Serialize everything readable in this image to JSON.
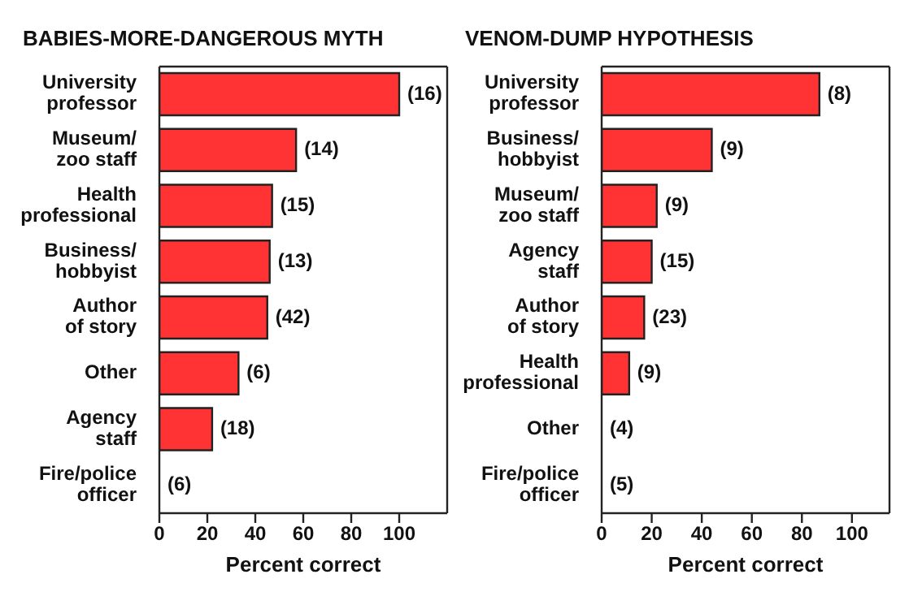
{
  "chart_data": [
    {
      "type": "bar",
      "orientation": "horizontal",
      "title": "BABIES-MORE-DANGEROUS MYTH",
      "xlabel": "Percent correct",
      "categories": [
        "University\nprofessor",
        "Museum/\nzoo staff",
        "Health\nprofessional",
        "Business/\nhobbyist",
        "Author\nof story",
        "Other",
        "Agency\nstaff",
        "Fire/police\nofficer"
      ],
      "values": [
        100,
        57,
        47,
        46,
        45,
        33,
        22,
        0
      ],
      "color": "#ff3333",
      "xlim": [
        0,
        120
      ],
      "xticks": [
        0,
        20,
        40,
        60,
        80,
        100
      ],
      "annotations": [
        {
          "text": "(16)",
          "x": 100,
          "y": "University\nprofessor"
        },
        {
          "text": "(14)",
          "x": 57,
          "y": "Museum/\nzoo staff"
        },
        {
          "text": "(15)",
          "x": 47,
          "y": "Health\nprofessional"
        },
        {
          "text": "(13)",
          "x": 46,
          "y": "Business/\nhobbyist"
        },
        {
          "text": "(42)",
          "x": 45,
          "y": "Author\nof story"
        },
        {
          "text": "(6)",
          "x": 33,
          "y": "Other"
        },
        {
          "text": "(18)",
          "x": 22,
          "y": "Agency\nstaff"
        },
        {
          "text": "(6)",
          "x": 0,
          "y": "Fire/police\nofficer"
        }
      ]
    },
    {
      "type": "bar",
      "orientation": "horizontal",
      "title": "VENOM-DUMP HYPOTHESIS",
      "xlabel": "Percent correct",
      "categories": [
        "University\nprofessor",
        "Business/\nhobbyist",
        "Museum/\nzoo staff",
        "Agency\nstaff",
        "Author\nof story",
        "Health\nprofessional",
        "Other",
        "Fire/police\nofficer"
      ],
      "values": [
        87,
        44,
        22,
        20,
        17,
        11,
        0,
        0
      ],
      "color": "#ff3333",
      "xlim": [
        0,
        115
      ],
      "xticks": [
        0,
        20,
        40,
        60,
        80,
        100
      ],
      "annotations": [
        {
          "text": "(8)",
          "x": 87,
          "y": "University\nprofessor"
        },
        {
          "text": "(9)",
          "x": 44,
          "y": "Business/\nhobbyist"
        },
        {
          "text": "(9)",
          "x": 22,
          "y": "Museum/\nzoo staff"
        },
        {
          "text": "(15)",
          "x": 20,
          "y": "Agency\nstaff"
        },
        {
          "text": "(23)",
          "x": 17,
          "y": "Author\nof story"
        },
        {
          "text": "(9)",
          "x": 11,
          "y": "Health\nprofessional"
        },
        {
          "text": "(4)",
          "x": 0,
          "y": "Other"
        },
        {
          "text": "(5)",
          "x": 0,
          "y": "Fire/police\nofficer"
        }
      ]
    }
  ]
}
